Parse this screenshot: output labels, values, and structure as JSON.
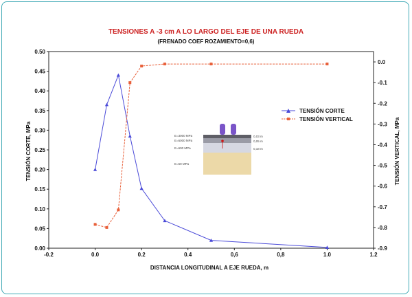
{
  "chart_data": {
    "type": "line",
    "title": "TENSIONES A -3 cm A LO LARGO DEL EJE DE UNA RUEDA",
    "subtitle": "(FRENADO COEF ROZAMIENTO=0,6)",
    "xlabel": "DISTANCIA LONGITUDINAL A EJE  RUEDA, m",
    "ylabel_left": "TENSIÓN CORTE, MPa",
    "ylabel_right": "TENSIÓN VERTICAL, MPa",
    "xlim": [
      -0.2,
      1.2
    ],
    "ylim_left": [
      0,
      0.5
    ],
    "ylim_right": [
      -0.9,
      0.05
    ],
    "x_ticks": [
      "-0.2",
      "0.0",
      "0.2",
      "0.4",
      "0,6",
      "0,8",
      "1.0",
      "1.2"
    ],
    "y_left_ticks": [
      "0.00",
      "0.05",
      "0.10",
      "0.15",
      "0.20",
      "0.25",
      "0.30",
      "0.35",
      "0.40",
      "0.45",
      "0.50"
    ],
    "y_right_ticks": [
      "0.0",
      "-0.1",
      "-0.2",
      "-0.3",
      "-0.4",
      "-0.5",
      "-0.6",
      "-0.7",
      "-0.8",
      "-0.9"
    ],
    "legend_position": "right",
    "series": [
      {
        "name": "TENSIÓN CORTE",
        "axis": "left",
        "color": "#4a4ad8",
        "marker": "triangle",
        "x": [
          0.0,
          0.05,
          0.1,
          0.15,
          0.2,
          0.3,
          0.5,
          1.0
        ],
        "y": [
          0.2,
          0.365,
          0.44,
          0.285,
          0.152,
          0.07,
          0.02,
          0.002
        ]
      },
      {
        "name": "TENSIÓN VERTICAL",
        "axis": "right",
        "color": "#e8603a",
        "marker": "square",
        "x": [
          0.0,
          0.05,
          0.1,
          0.15,
          0.2,
          0.3,
          0.5,
          1.0
        ],
        "y": [
          -0.785,
          -0.8,
          -0.715,
          -0.1,
          -0.02,
          -0.01,
          -0.01,
          -0.01
        ]
      }
    ],
    "inset": {
      "labels": [
        "E=3000 MPa",
        "E=6000 MPa",
        "E=600 MPa",
        "E=50 MPa"
      ],
      "thickness": [
        "0,03 m",
        "0,05 m",
        "0,18 m"
      ]
    }
  }
}
